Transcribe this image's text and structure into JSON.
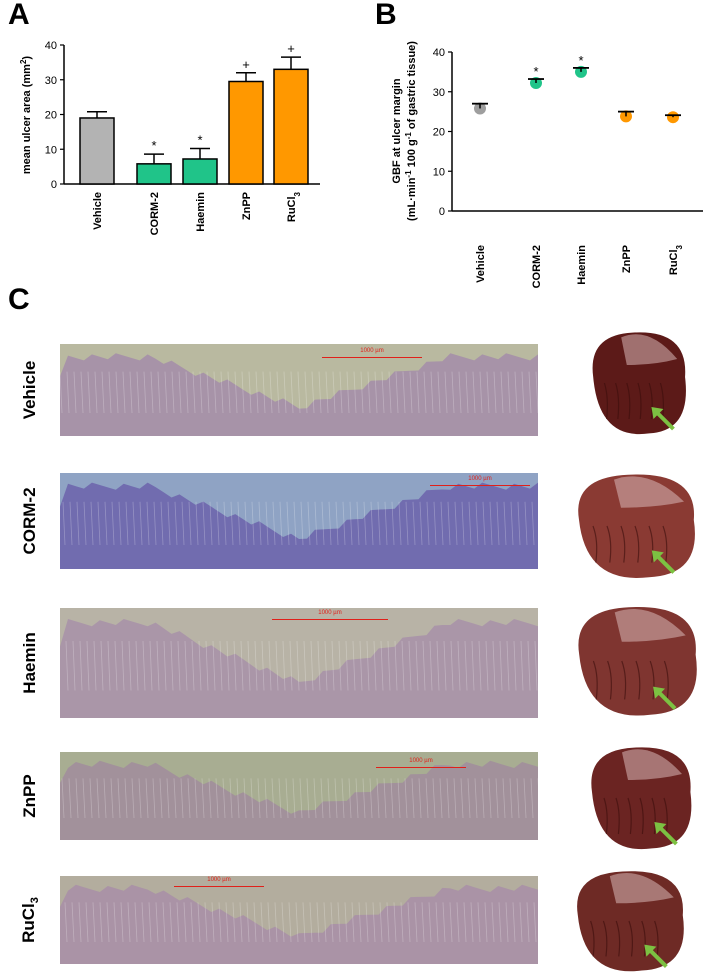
{
  "panels": {
    "a": "A",
    "b": "B",
    "c": "C"
  },
  "chart_data": [
    {
      "type": "bar",
      "panel": "A",
      "categories": [
        "Vehicle",
        "CORM-2",
        "Haemin",
        "ZnPP",
        "RuCl"
      ],
      "category_subscripts": [
        "",
        "",
        "",
        "",
        "3"
      ],
      "values": [
        19.0,
        5.8,
        7.2,
        29.5,
        33.0
      ],
      "errors": [
        1.8,
        2.8,
        3.0,
        2.5,
        3.5
      ],
      "annotations": [
        "",
        "*",
        "*",
        "+",
        "+"
      ],
      "colors": [
        "#b3b3b3",
        "#20c489",
        "#20c489",
        "#ff9800",
        "#ff9800"
      ],
      "ylabel_main": "mean ulcer area (mm",
      "ylabel_sup": "2",
      "ylabel_end": ")",
      "ylim": [
        0,
        40
      ],
      "yticks": [
        "0",
        "10",
        "20",
        "30",
        "40"
      ]
    },
    {
      "type": "scatter",
      "panel": "B",
      "categories": [
        "Vehicle",
        "CORM-2",
        "Haemin",
        "ZnPP",
        "RuCl"
      ],
      "category_subscripts": [
        "",
        "",
        "",
        "",
        "3"
      ],
      "values": [
        25.8,
        32.2,
        35.0,
        23.8,
        23.6
      ],
      "errors": [
        1.2,
        1.0,
        1.0,
        1.2,
        0.5
      ],
      "annotations": [
        "",
        "*",
        "*",
        "",
        ""
      ],
      "colors": [
        "#9e9e9e",
        "#20c489",
        "#20c489",
        "#ff9800",
        "#ff9800"
      ],
      "ylabel_line1": "GBF at ulcer margin",
      "ylabel_line2_parts": [
        "(mL·min",
        "-1",
        " 100 g",
        "-1",
        " of gastric tissue)"
      ],
      "ylim": [
        0,
        40
      ],
      "yticks": [
        "0",
        "10",
        "20",
        "30",
        "40"
      ]
    }
  ],
  "images": {
    "rows": [
      {
        "label": "Vehicle",
        "sub": "",
        "scale_text": "1000 µm",
        "tint": "veh"
      },
      {
        "label": "CORM-2",
        "sub": "",
        "scale_text": "1000 µm",
        "tint": "corm"
      },
      {
        "label": "Haemin",
        "sub": "",
        "scale_text": "1000 µm",
        "tint": "hae"
      },
      {
        "label": "ZnPP",
        "sub": "",
        "scale_text": "1000 µm",
        "tint": "znpp"
      },
      {
        "label": "RuCl",
        "sub": "3",
        "scale_text": "1000 µm",
        "tint": "ru"
      }
    ],
    "bg_colors": {
      "veh": "#b9b9a0",
      "corm": "#8fa3c4",
      "hae": "#b8b3a6",
      "znpp": "#a8ad92",
      "ru": "#b3ad9e"
    },
    "tissue_colors": {
      "veh": "#a58fa8",
      "corm": "#6e66ad",
      "hae": "#a892a8",
      "znpp": "#a18e9c",
      "ru": "#a890a6"
    },
    "scale_color": "#e0201a",
    "arrow_color": "#7cc142",
    "stomach_colors": {
      "veh": "#5c1a18",
      "corm": "#8a3a33",
      "hae": "#7f3530",
      "znpp": "#6b2422",
      "ru": "#6e2a25"
    }
  }
}
